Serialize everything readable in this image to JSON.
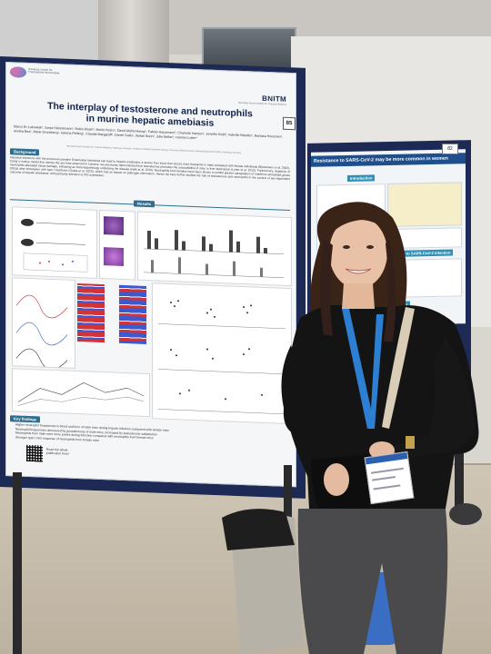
{
  "main_poster": {
    "logo_left_text": "Hamburg Centre for Translational Immunology",
    "logo_right": "BNITM",
    "logo_right_sub": "Bernhard Nocht Institute for Tropical Medicine",
    "poster_number": "85",
    "title": "The interplay of testosterone and neutrophils in murine hepatic amebiasis",
    "authors": "Marco Er-Lukowiak¹, Sonja Hänzelmann², Robin Khatri², Moritz Rotzo¹, David Mühlenkamp¹, Fabian Hausmann², Charlotte Hansen¹, Jennifer Bobl¹, Valentin Bändler¹, Barbara Honecker¹, Annika Bea¹, Marie Groneberg¹, Helena Fehling¹, Claudia Marggraff¹, Daniel Gallo¹, Stefan Bonn², Julie Bellaz¹, Hannes Lotter¹",
    "affiliations": "¹Bernhard Nocht Institute for Tropical Medicine, Hamburg, Germany; ²Institute of Medical Systems Biology, University Medical Center Hamburg-Eppendorf (UKE), Hamburg, Germany",
    "background_heading": "Background",
    "background_text": "Intestinal infections with the protozoan parasite Entamoeba histolytica can lead to hepatic amebiasis, a severe liver injury that occurs more frequently in male compared with female individuals (Blessmann et al. 2002). Using a murine model that mimics the sex bias observed in humans, we previously demonstrated that testosterone promotes the susceptibility of mice to liver destruction (Lotter et al. 2013). Furthermore, depletion of neutrophils alleviated tissue damage, indicating an immunopathology underlying the disease (Helk et al. 2013). Neutrophils from females have been shown to exhibit greater upregulation of interferon-stimulated genes (ISGs) after stimulation with type I interferon (Gupta et al. 2020), which has an impact on pathogen elimination. Hence we here further studied the role of testosterone and neutrophils in the context of sex-dependent outcome of hepatic amebiasis, with particular attention to ISG expression.",
    "results_heading": "Results",
    "key_findings_heading": "Key findings",
    "key_findings": [
      "Higher neutrophil frequencies in blood and liver of male mice during hepatic infection compared with female mice",
      "Neutrophil frequencies decreased by gonadectomy of male mice, increased by testosterone substitution",
      "Neutrophils from male mice more potent during infection compared with neutrophils from female mice",
      "Stronger type I ISG response of neutrophils from female mice"
    ],
    "qr_caption": "Read the whole publication here!"
  },
  "second_poster": {
    "title": "Resistance to SARS-CoV-2 may be more common in women",
    "poster_number": "82",
    "introduction_heading": "Introduction",
    "response_heading": "response to SARS-CoV-2 infection",
    "next_steps_heading": "Next steps"
  },
  "colors": {
    "poster_navy": "#1d2a55",
    "section_teal": "#2f6e8f",
    "lanyard_blue": "#2c7fd1",
    "sweater": "#141414"
  },
  "scene": {
    "description_tags": [
      "academic-poster",
      "conference-hall",
      "presenter"
    ]
  }
}
